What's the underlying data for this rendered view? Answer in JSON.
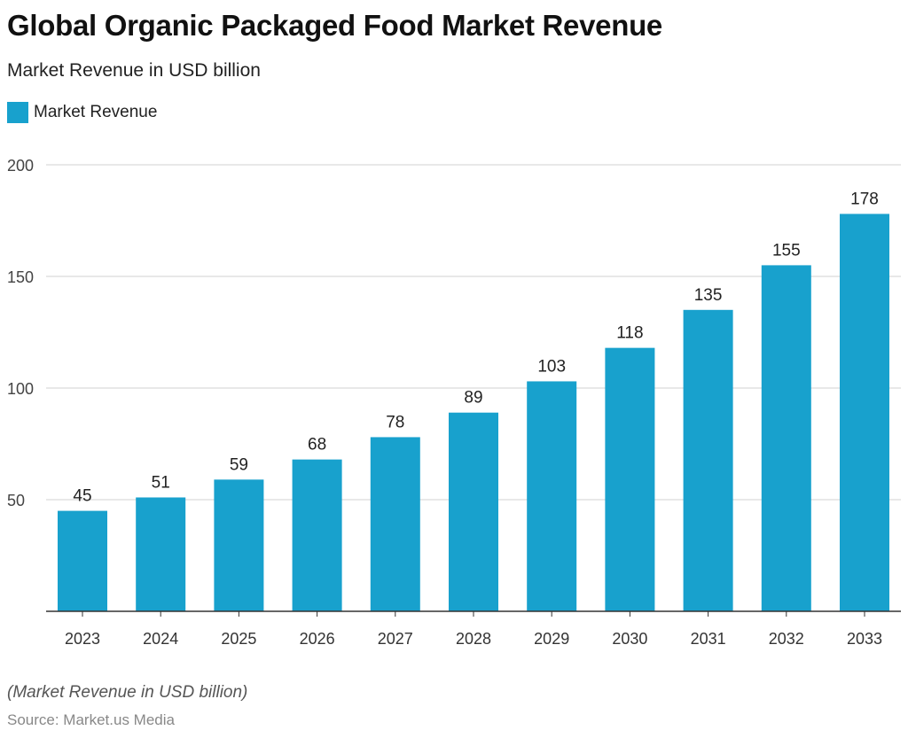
{
  "chart_data": {
    "type": "bar",
    "title": "Global Organic Packaged Food Market Revenue",
    "subtitle": "Market Revenue in USD billion",
    "categories": [
      "2023",
      "2024",
      "2025",
      "2026",
      "2027",
      "2028",
      "2029",
      "2030",
      "2031",
      "2032",
      "2033"
    ],
    "series": [
      {
        "name": "Market Revenue",
        "values": [
          45,
          51,
          59,
          68,
          78,
          89,
          103,
          118,
          135,
          155,
          178
        ],
        "color": "#18a1cd"
      }
    ],
    "xlabel": "",
    "ylabel": "",
    "ylim": [
      0,
      200
    ],
    "yticks": [
      50,
      100,
      150,
      200
    ],
    "grid": true,
    "legend": "top-left",
    "note": "(Market Revenue in USD billion)",
    "source": "Source: Market.us Media"
  }
}
